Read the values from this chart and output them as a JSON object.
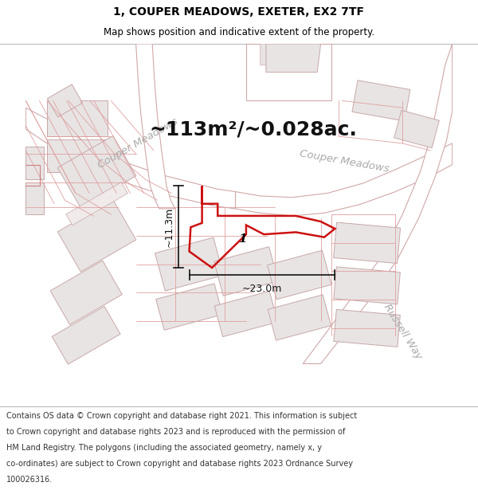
{
  "title_line1": "1, COUPER MEADOWS, EXETER, EX2 7TF",
  "title_line2": "Map shows position and indicative extent of the property.",
  "area_text": "~113m²/~0.028ac.",
  "dim_width": "~23.0m",
  "dim_height": "~11.3m",
  "plot_number": "1",
  "footer_lines": [
    "Contains OS data © Crown copyright and database right 2021. This information is subject",
    "to Crown copyright and database rights 2023 and is reproduced with the permission of",
    "HM Land Registry. The polygons (including the associated geometry, namely x, y",
    "co-ordinates) are subject to Crown copyright and database rights 2023 Ordnance Survey",
    "100026316."
  ],
  "map_bg": "#f7f4f4",
  "road_fill": "#ffffff",
  "road_edge": "#d4b8b8",
  "block_fill": "#e8e4e4",
  "block_edge": "#c8b0b0",
  "prop_color": "#cc1111",
  "street_label_color": "#aaaaaa",
  "dim_color": "#111111",
  "area_color": "#111111"
}
